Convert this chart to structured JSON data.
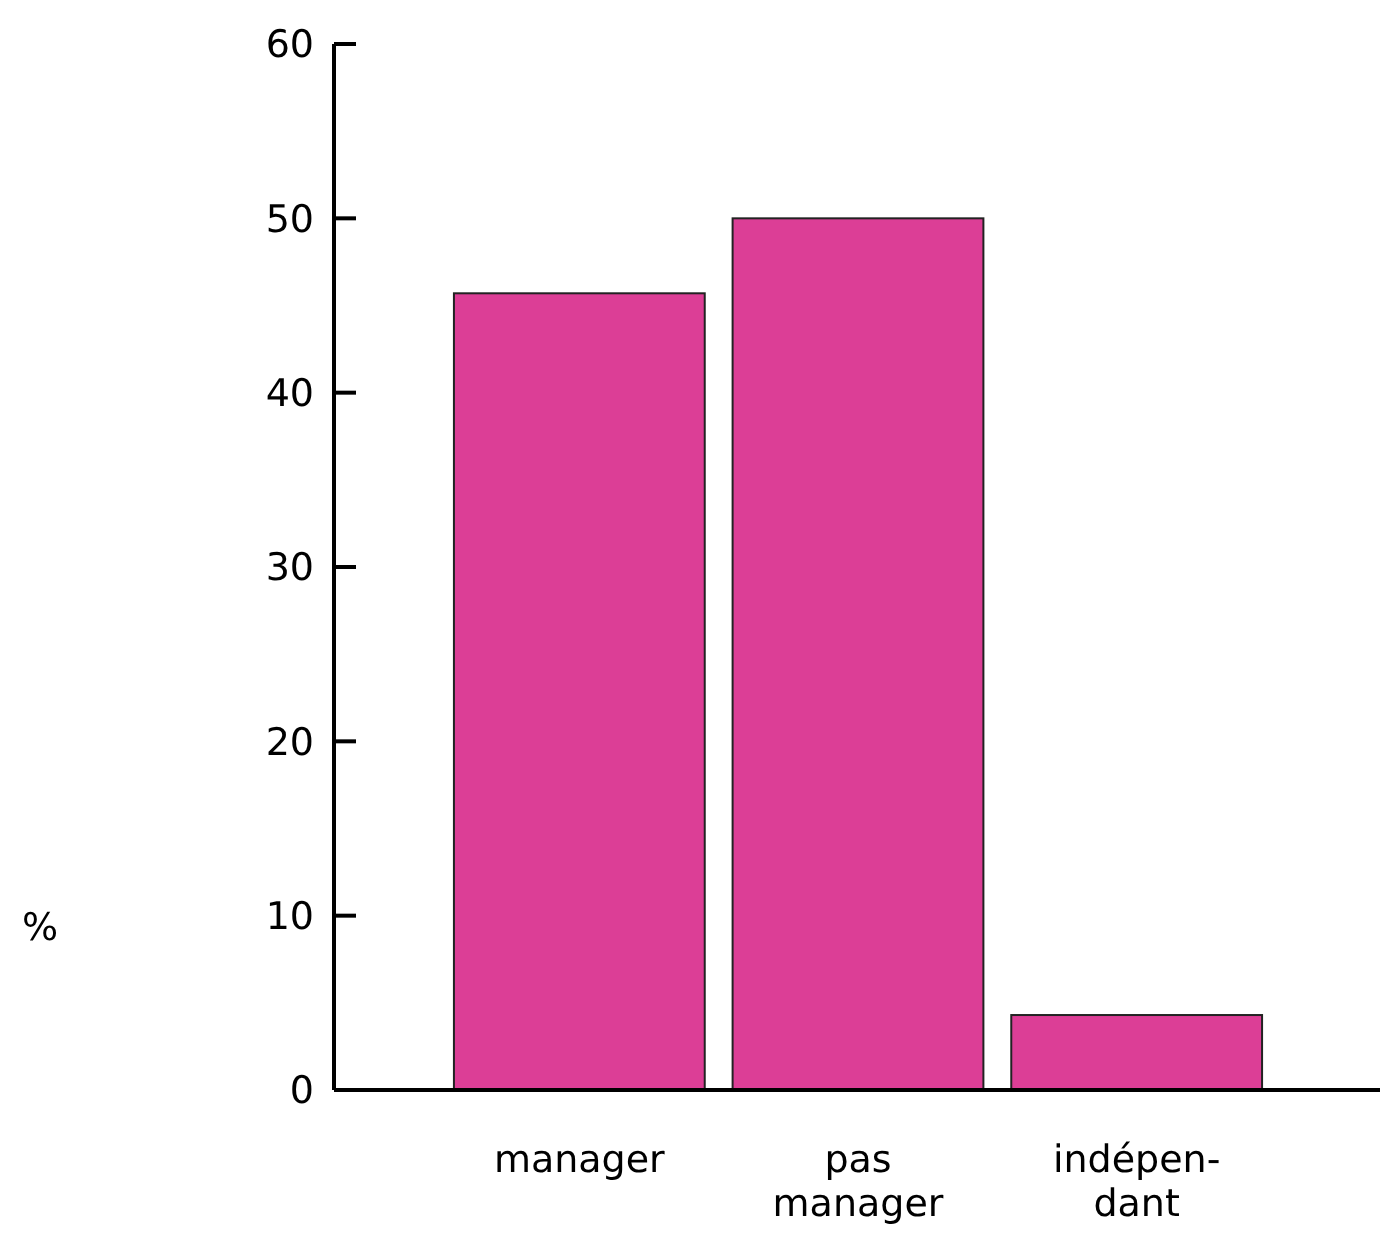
{
  "chart_data": {
    "type": "bar",
    "annotations": [
      "%"
    ],
    "categories": [
      "manager",
      "pas\nmanager",
      "indépen-\ndant"
    ],
    "values": [
      45.7,
      50,
      4.3
    ],
    "color": "#dc3e96",
    "ylim": [
      0,
      60
    ],
    "yticks": [
      0,
      10,
      20,
      30,
      40,
      50,
      60
    ],
    "grid": false
  }
}
